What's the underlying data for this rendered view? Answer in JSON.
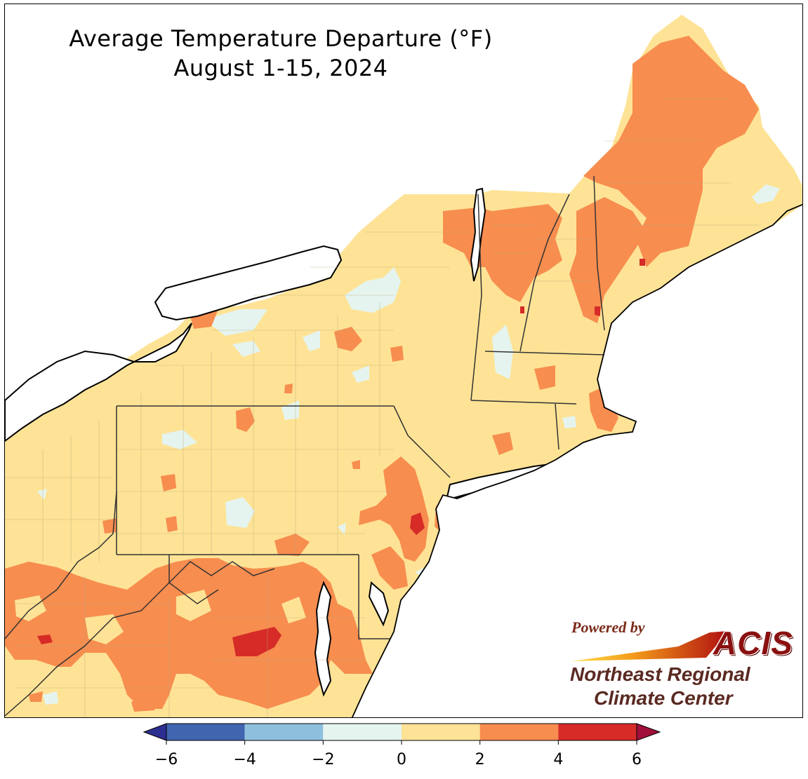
{
  "title": {
    "line1": "Average Temperature Departure ($^\\circ$F)",
    "line1_display": "Average Temperature Departure (°F)",
    "line2": "August 1-15, 2024"
  },
  "map": {
    "region": "Northeast United States",
    "variable": "Average Temperature Departure",
    "units": "°F"
  },
  "logo": {
    "powered_by": "Powered by",
    "brand": "ACIS",
    "org_line1": "Northeast Regional",
    "org_line2": "Climate Center"
  },
  "colorbar": {
    "ticks": [
      "−6",
      "−4",
      "−2",
      "0",
      "2",
      "4",
      "6"
    ],
    "bins": [
      {
        "range": "-6 to -4",
        "color": "#4265b0"
      },
      {
        "range": "-4 to -2",
        "color": "#8ec0de"
      },
      {
        "range": "-2 to 0",
        "color": "#e5f4ef"
      },
      {
        "range": "0 to 2",
        "color": "#fee396"
      },
      {
        "range": "2 to 4",
        "color": "#f78d4f"
      },
      {
        "range": "4 to 6",
        "color": "#d62b27"
      }
    ],
    "under_color": "#2d2f8f",
    "over_color": "#a0103a"
  },
  "colors": {
    "water": "#ffffff",
    "land_base": "#fee396",
    "warm": "#f78d4f",
    "hot": "#d62b27",
    "cool": "#e5f4ef",
    "state_border": "#333333",
    "county_border": "#b8a878"
  }
}
